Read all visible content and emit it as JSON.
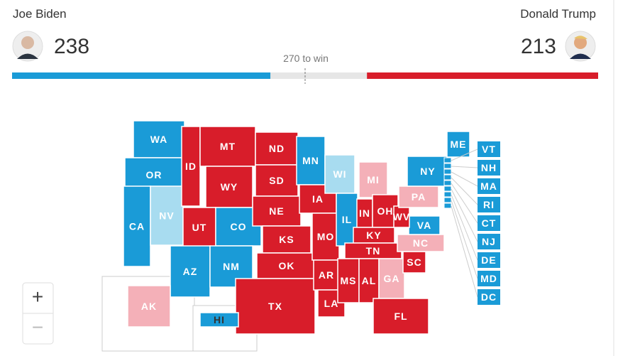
{
  "header": {
    "candidates": [
      {
        "name": "Joe Biden",
        "votes": 238,
        "color": "#1a9bd7"
      },
      {
        "name": "Donald Trump",
        "votes": 213,
        "color": "#d81d2a"
      }
    ],
    "threshold": {
      "value": 270,
      "label": "270 to win"
    }
  },
  "map": {
    "colors": {
      "dem": "#1a9bd7",
      "rep": "#d81d2a",
      "lean_dem": "#a8dcf0",
      "lean_rep": "#f4b0b8"
    },
    "states": [
      {
        "abbr": "WA",
        "status": "dem"
      },
      {
        "abbr": "OR",
        "status": "dem"
      },
      {
        "abbr": "CA",
        "status": "dem"
      },
      {
        "abbr": "NV",
        "status": "lean_dem"
      },
      {
        "abbr": "ID",
        "status": "rep"
      },
      {
        "abbr": "MT",
        "status": "rep"
      },
      {
        "abbr": "WY",
        "status": "rep"
      },
      {
        "abbr": "UT",
        "status": "rep"
      },
      {
        "abbr": "AZ",
        "status": "dem"
      },
      {
        "abbr": "CO",
        "status": "dem"
      },
      {
        "abbr": "NM",
        "status": "dem"
      },
      {
        "abbr": "ND",
        "status": "rep"
      },
      {
        "abbr": "SD",
        "status": "rep"
      },
      {
        "abbr": "NE",
        "status": "rep"
      },
      {
        "abbr": "KS",
        "status": "rep"
      },
      {
        "abbr": "OK",
        "status": "rep"
      },
      {
        "abbr": "TX",
        "status": "rep"
      },
      {
        "abbr": "MN",
        "status": "dem"
      },
      {
        "abbr": "IA",
        "status": "rep"
      },
      {
        "abbr": "MO",
        "status": "rep"
      },
      {
        "abbr": "AR",
        "status": "rep"
      },
      {
        "abbr": "LA",
        "status": "rep"
      },
      {
        "abbr": "WI",
        "status": "lean_dem"
      },
      {
        "abbr": "IL",
        "status": "dem"
      },
      {
        "abbr": "MI",
        "status": "lean_rep"
      },
      {
        "abbr": "IN",
        "status": "rep"
      },
      {
        "abbr": "OH",
        "status": "rep"
      },
      {
        "abbr": "KY",
        "status": "rep"
      },
      {
        "abbr": "TN",
        "status": "rep"
      },
      {
        "abbr": "MS",
        "status": "rep"
      },
      {
        "abbr": "AL",
        "status": "rep"
      },
      {
        "abbr": "GA",
        "status": "lean_rep"
      },
      {
        "abbr": "FL",
        "status": "rep"
      },
      {
        "abbr": "SC",
        "status": "rep"
      },
      {
        "abbr": "NC",
        "status": "lean_rep"
      },
      {
        "abbr": "VA",
        "status": "dem"
      },
      {
        "abbr": "WV",
        "status": "rep"
      },
      {
        "abbr": "PA",
        "status": "lean_rep"
      },
      {
        "abbr": "NY",
        "status": "dem"
      },
      {
        "abbr": "ME",
        "status": "dem"
      },
      {
        "abbr": "AK",
        "status": "lean_rep"
      },
      {
        "abbr": "HI",
        "status": "dem"
      }
    ],
    "small_states": [
      {
        "abbr": "VT",
        "status": "dem"
      },
      {
        "abbr": "NH",
        "status": "dem"
      },
      {
        "abbr": "MA",
        "status": "dem"
      },
      {
        "abbr": "RI",
        "status": "dem"
      },
      {
        "abbr": "CT",
        "status": "dem"
      },
      {
        "abbr": "NJ",
        "status": "dem"
      },
      {
        "abbr": "DE",
        "status": "dem"
      },
      {
        "abbr": "MD",
        "status": "dem"
      },
      {
        "abbr": "DC",
        "status": "dem"
      }
    ]
  },
  "zoom": {
    "in": "+",
    "out": "−"
  }
}
